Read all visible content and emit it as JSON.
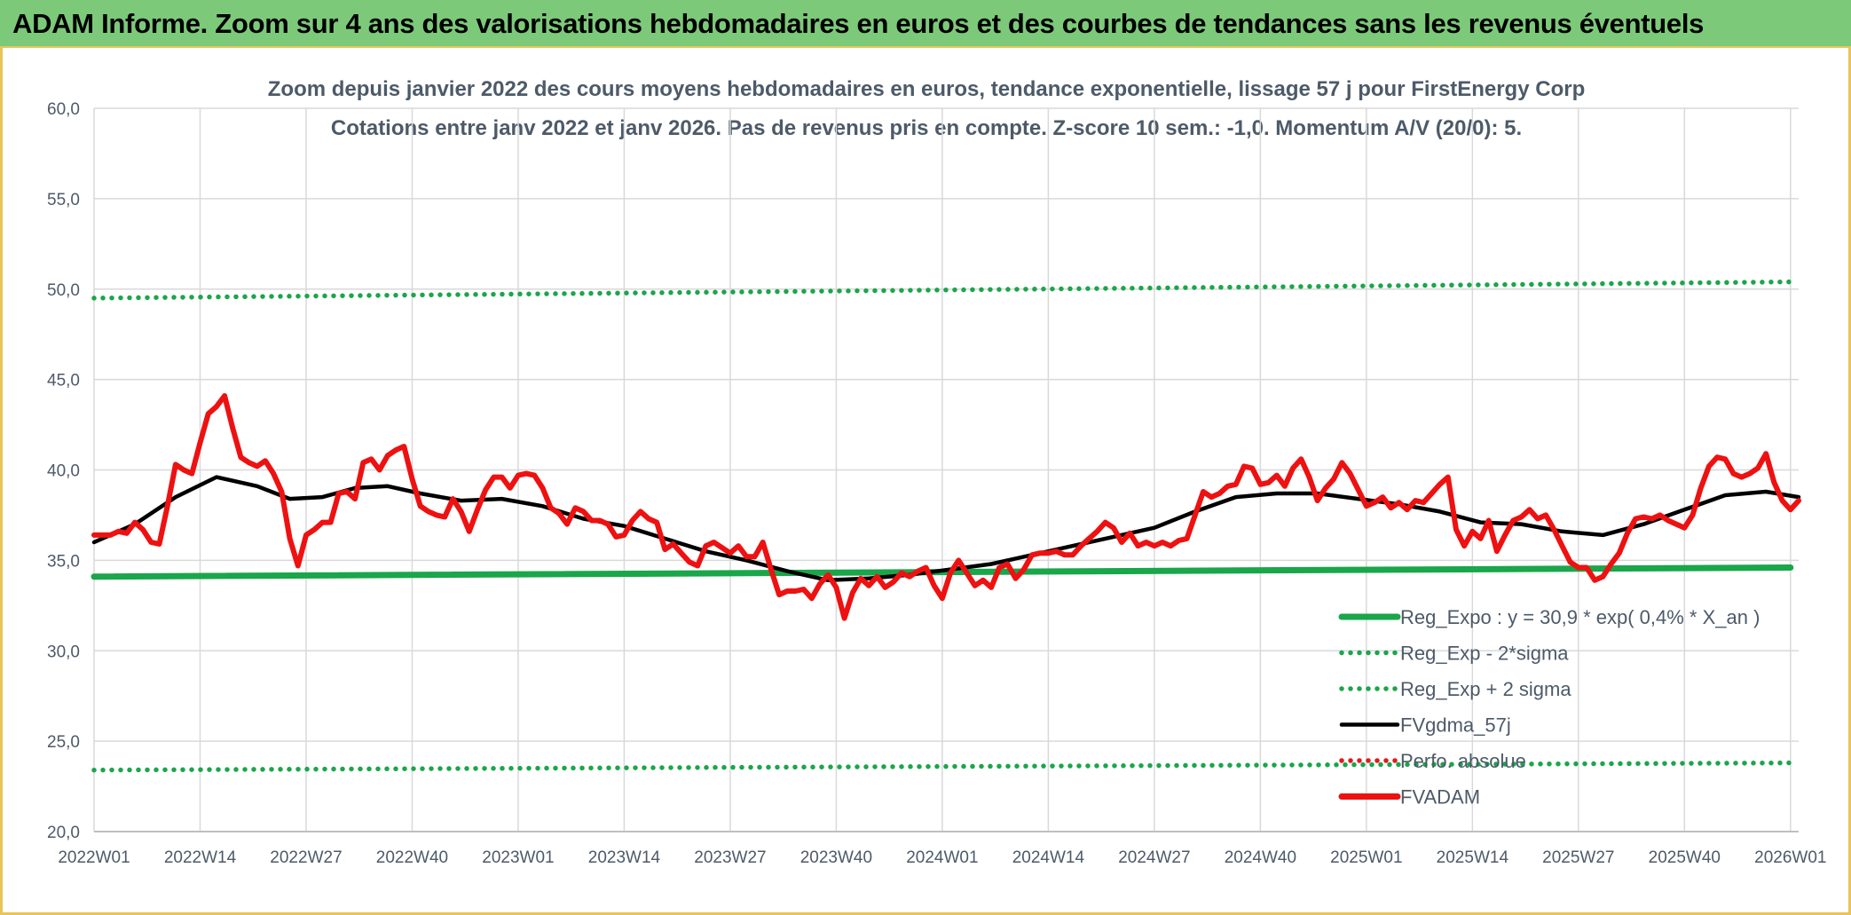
{
  "header": {
    "title": "ADAM Informe. Zoom sur 4 ans des valorisations hebdomadaires en euros et des courbes de tendances sans les revenus éventuels"
  },
  "chart_data": {
    "type": "line",
    "title": "Zoom depuis janvier 2022 des cours moyens hebdomadaires en euros, tendance exponentielle, lissage 57 j pour FirstEnergy Corp",
    "subtitle": "Cotations entre janv 2022 et janv 2026. Pas de revenus pris en compte. Z-score 10 sem.: -1,0. Momentum A/V (20/0): 5.",
    "xlabel": "",
    "ylabel": "",
    "ylim": [
      20,
      60
    ],
    "yticks": [
      "20,0",
      "25,0",
      "30,0",
      "35,0",
      "40,0",
      "45,0",
      "50,0",
      "55,0",
      "60,0"
    ],
    "xlim": [
      0,
      209
    ],
    "xticks": [
      {
        "week": 0,
        "label": "2022W01"
      },
      {
        "week": 13,
        "label": "2022W14"
      },
      {
        "week": 26,
        "label": "2022W27"
      },
      {
        "week": 39,
        "label": "2022W40"
      },
      {
        "week": 52,
        "label": "2023W01"
      },
      {
        "week": 65,
        "label": "2023W14"
      },
      {
        "week": 78,
        "label": "2023W27"
      },
      {
        "week": 91,
        "label": "2023W40"
      },
      {
        "week": 104,
        "label": "2024W01"
      },
      {
        "week": 117,
        "label": "2024W14"
      },
      {
        "week": 130,
        "label": "2024W27"
      },
      {
        "week": 143,
        "label": "2024W40"
      },
      {
        "week": 156,
        "label": "2025W01"
      },
      {
        "week": 169,
        "label": "2025W14"
      },
      {
        "week": 182,
        "label": "2025W27"
      },
      {
        "week": 195,
        "label": "2025W40"
      },
      {
        "week": 208,
        "label": "2026W01"
      }
    ],
    "grid": true,
    "legend_position": "bottom-right",
    "series": [
      {
        "name": "Reg_Expo : y = 30,9 * exp( 0,4% *  X_an )",
        "style": "solid",
        "color": "#1aa64a",
        "points": [
          [
            0,
            34.1
          ],
          [
            208,
            34.6
          ]
        ]
      },
      {
        "name": "Reg_Exp - 2*sigma",
        "style": "dotted",
        "color": "#1aa64a",
        "points": [
          [
            0,
            23.4
          ],
          [
            208,
            23.8
          ]
        ]
      },
      {
        "name": "Reg_Exp + 2 sigma",
        "style": "dotted",
        "color": "#1aa64a",
        "points": [
          [
            0,
            49.5
          ],
          [
            208,
            50.4
          ]
        ]
      },
      {
        "name": "FVgdma_57j",
        "style": "solid",
        "color": "#000000",
        "points": [
          [
            0,
            36.0
          ],
          [
            5,
            37.0
          ],
          [
            10,
            38.5
          ],
          [
            15,
            39.6
          ],
          [
            20,
            39.1
          ],
          [
            24,
            38.4
          ],
          [
            28,
            38.5
          ],
          [
            32,
            39.0
          ],
          [
            36,
            39.1
          ],
          [
            40,
            38.7
          ],
          [
            45,
            38.3
          ],
          [
            50,
            38.4
          ],
          [
            55,
            38.0
          ],
          [
            60,
            37.3
          ],
          [
            65,
            36.9
          ],
          [
            70,
            36.2
          ],
          [
            75,
            35.5
          ],
          [
            80,
            35.0
          ],
          [
            85,
            34.4
          ],
          [
            90,
            33.9
          ],
          [
            95,
            34.0
          ],
          [
            100,
            34.2
          ],
          [
            105,
            34.5
          ],
          [
            110,
            34.8
          ],
          [
            115,
            35.3
          ],
          [
            120,
            35.8
          ],
          [
            125,
            36.3
          ],
          [
            130,
            36.8
          ],
          [
            135,
            37.7
          ],
          [
            140,
            38.5
          ],
          [
            145,
            38.7
          ],
          [
            150,
            38.7
          ],
          [
            155,
            38.4
          ],
          [
            160,
            38.1
          ],
          [
            165,
            37.7
          ],
          [
            170,
            37.1
          ],
          [
            175,
            37.0
          ],
          [
            180,
            36.6
          ],
          [
            185,
            36.4
          ],
          [
            190,
            37.0
          ],
          [
            195,
            37.8
          ],
          [
            200,
            38.6
          ],
          [
            205,
            38.8
          ],
          [
            209,
            38.5
          ]
        ]
      },
      {
        "name": "Perfo. absolue",
        "style": "dotted",
        "color": "#e31a1c",
        "points": []
      },
      {
        "name": "FVADAM",
        "style": "solid",
        "color": "#ee1111",
        "points": [
          [
            0,
            36.4
          ],
          [
            2,
            36.4
          ],
          [
            3,
            36.6
          ],
          [
            4,
            36.5
          ],
          [
            5,
            37.1
          ],
          [
            6,
            36.7
          ],
          [
            7,
            36.0
          ],
          [
            8,
            35.9
          ],
          [
            9,
            38.0
          ],
          [
            10,
            40.3
          ],
          [
            11,
            40.0
          ],
          [
            12,
            39.8
          ],
          [
            13,
            41.5
          ],
          [
            14,
            43.1
          ],
          [
            15,
            43.5
          ],
          [
            16,
            44.1
          ],
          [
            17,
            42.3
          ],
          [
            18,
            40.7
          ],
          [
            19,
            40.4
          ],
          [
            20,
            40.2
          ],
          [
            21,
            40.5
          ],
          [
            22,
            39.8
          ],
          [
            23,
            38.8
          ],
          [
            24,
            36.2
          ],
          [
            25,
            34.7
          ],
          [
            26,
            36.4
          ],
          [
            27,
            36.7
          ],
          [
            28,
            37.1
          ],
          [
            29,
            37.1
          ],
          [
            30,
            38.7
          ],
          [
            31,
            38.8
          ],
          [
            32,
            38.4
          ],
          [
            33,
            40.4
          ],
          [
            34,
            40.6
          ],
          [
            35,
            40.0
          ],
          [
            36,
            40.8
          ],
          [
            37,
            41.1
          ],
          [
            38,
            41.3
          ],
          [
            39,
            39.5
          ],
          [
            40,
            38.0
          ],
          [
            41,
            37.7
          ],
          [
            42,
            37.5
          ],
          [
            43,
            37.4
          ],
          [
            44,
            38.4
          ],
          [
            45,
            37.7
          ],
          [
            46,
            36.6
          ],
          [
            47,
            37.8
          ],
          [
            48,
            38.9
          ],
          [
            49,
            39.6
          ],
          [
            50,
            39.6
          ],
          [
            51,
            39.0
          ],
          [
            52,
            39.7
          ],
          [
            53,
            39.8
          ],
          [
            54,
            39.7
          ],
          [
            55,
            39.0
          ],
          [
            56,
            37.9
          ],
          [
            57,
            37.6
          ],
          [
            58,
            37.0
          ],
          [
            59,
            37.9
          ],
          [
            60,
            37.7
          ],
          [
            61,
            37.2
          ],
          [
            62,
            37.2
          ],
          [
            63,
            37.0
          ],
          [
            64,
            36.3
          ],
          [
            65,
            36.4
          ],
          [
            66,
            37.2
          ],
          [
            67,
            37.7
          ],
          [
            68,
            37.3
          ],
          [
            69,
            37.1
          ],
          [
            70,
            35.6
          ],
          [
            71,
            35.9
          ],
          [
            72,
            35.4
          ],
          [
            73,
            34.9
          ],
          [
            74,
            34.7
          ],
          [
            75,
            35.8
          ],
          [
            76,
            36.0
          ],
          [
            77,
            35.7
          ],
          [
            78,
            35.4
          ],
          [
            79,
            35.8
          ],
          [
            80,
            35.2
          ],
          [
            81,
            35.2
          ],
          [
            82,
            36.0
          ],
          [
            83,
            34.5
          ],
          [
            84,
            33.1
          ],
          [
            85,
            33.3
          ],
          [
            86,
            33.3
          ],
          [
            87,
            33.4
          ],
          [
            88,
            32.9
          ],
          [
            89,
            33.7
          ],
          [
            90,
            34.2
          ],
          [
            91,
            33.5
          ],
          [
            92,
            31.8
          ],
          [
            93,
            33.2
          ],
          [
            94,
            34.0
          ],
          [
            95,
            33.6
          ],
          [
            96,
            34.1
          ],
          [
            97,
            33.5
          ],
          [
            98,
            33.8
          ],
          [
            99,
            34.3
          ],
          [
            100,
            34.1
          ],
          [
            101,
            34.4
          ],
          [
            102,
            34.6
          ],
          [
            103,
            33.6
          ],
          [
            104,
            32.9
          ],
          [
            105,
            34.3
          ],
          [
            106,
            35.0
          ],
          [
            107,
            34.3
          ],
          [
            108,
            33.6
          ],
          [
            109,
            33.9
          ],
          [
            110,
            33.5
          ],
          [
            111,
            34.6
          ],
          [
            112,
            34.8
          ],
          [
            113,
            34.0
          ],
          [
            114,
            34.5
          ],
          [
            115,
            35.3
          ],
          [
            116,
            35.4
          ],
          [
            117,
            35.4
          ],
          [
            118,
            35.5
          ],
          [
            119,
            35.3
          ],
          [
            120,
            35.3
          ],
          [
            121,
            35.8
          ],
          [
            122,
            36.2
          ],
          [
            123,
            36.6
          ],
          [
            124,
            37.1
          ],
          [
            125,
            36.8
          ],
          [
            126,
            36.0
          ],
          [
            127,
            36.5
          ],
          [
            128,
            35.8
          ],
          [
            129,
            36.0
          ],
          [
            130,
            35.8
          ],
          [
            131,
            36.0
          ],
          [
            132,
            35.8
          ],
          [
            133,
            36.1
          ],
          [
            134,
            36.2
          ],
          [
            135,
            37.5
          ],
          [
            136,
            38.8
          ],
          [
            137,
            38.5
          ],
          [
            138,
            38.7
          ],
          [
            139,
            39.1
          ],
          [
            140,
            39.2
          ],
          [
            141,
            40.2
          ],
          [
            142,
            40.1
          ],
          [
            143,
            39.2
          ],
          [
            144,
            39.3
          ],
          [
            145,
            39.7
          ],
          [
            146,
            39.1
          ],
          [
            147,
            40.1
          ],
          [
            148,
            40.6
          ],
          [
            149,
            39.6
          ],
          [
            150,
            38.3
          ],
          [
            151,
            39.0
          ],
          [
            152,
            39.5
          ],
          [
            153,
            40.4
          ],
          [
            154,
            39.8
          ],
          [
            155,
            38.9
          ],
          [
            156,
            38.0
          ],
          [
            157,
            38.2
          ],
          [
            158,
            38.5
          ],
          [
            159,
            37.9
          ],
          [
            160,
            38.2
          ],
          [
            161,
            37.8
          ],
          [
            162,
            38.3
          ],
          [
            163,
            38.2
          ],
          [
            164,
            38.7
          ],
          [
            165,
            39.2
          ],
          [
            166,
            39.6
          ],
          [
            167,
            36.7
          ],
          [
            168,
            35.8
          ],
          [
            169,
            36.6
          ],
          [
            170,
            36.2
          ],
          [
            171,
            37.2
          ],
          [
            172,
            35.5
          ],
          [
            173,
            36.4
          ],
          [
            174,
            37.2
          ],
          [
            175,
            37.4
          ],
          [
            176,
            37.8
          ],
          [
            177,
            37.3
          ],
          [
            178,
            37.5
          ],
          [
            179,
            36.7
          ],
          [
            180,
            35.8
          ],
          [
            181,
            34.9
          ],
          [
            182,
            34.6
          ],
          [
            183,
            34.6
          ],
          [
            184,
            33.9
          ],
          [
            185,
            34.1
          ],
          [
            186,
            34.8
          ],
          [
            187,
            35.4
          ],
          [
            188,
            36.5
          ],
          [
            189,
            37.3
          ],
          [
            190,
            37.4
          ],
          [
            191,
            37.3
          ],
          [
            192,
            37.5
          ],
          [
            193,
            37.2
          ],
          [
            194,
            37.0
          ],
          [
            195,
            36.8
          ],
          [
            196,
            37.5
          ],
          [
            197,
            39.0
          ],
          [
            198,
            40.2
          ],
          [
            199,
            40.7
          ],
          [
            200,
            40.6
          ],
          [
            201,
            39.8
          ],
          [
            202,
            39.6
          ],
          [
            203,
            39.8
          ],
          [
            204,
            40.1
          ],
          [
            205,
            40.9
          ],
          [
            206,
            39.3
          ],
          [
            207,
            38.3
          ],
          [
            208,
            37.8
          ],
          [
            209,
            38.3
          ]
        ]
      }
    ]
  }
}
